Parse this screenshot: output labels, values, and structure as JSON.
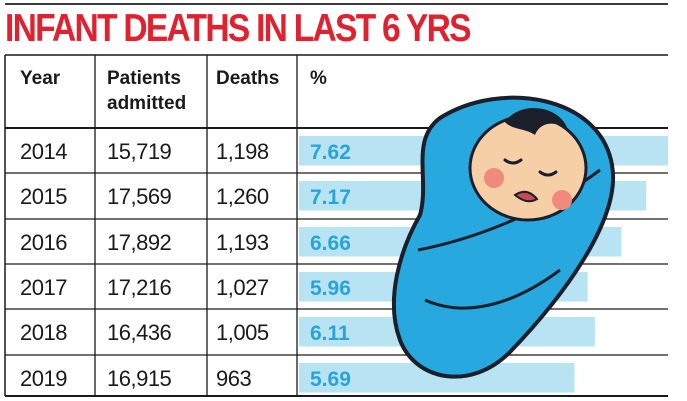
{
  "title": "INFANT DEATHS IN LAST 6 YRS",
  "colors": {
    "title": "#e02230",
    "bar": "#b7e3f3",
    "bar_text": "#2aa4d6",
    "blanket": "#27a9df",
    "blanket_dark": "#1a1f2b",
    "face": "#f7cfa7",
    "cheek": "#f08a7d",
    "rule": "#1a1a1a"
  },
  "table": {
    "headers": {
      "year": "Year",
      "patients_line1": "Patients",
      "patients_line2": "admitted",
      "deaths": "Deaths",
      "percent": "%"
    },
    "rows": [
      {
        "year": "2014",
        "patients": "15,719",
        "deaths": "1,198",
        "percent": "7.62"
      },
      {
        "year": "2015",
        "patients": "17,569",
        "deaths": "1,260",
        "percent": "7.17"
      },
      {
        "year": "2016",
        "patients": "17,892",
        "deaths": "1,193",
        "percent": "6.66"
      },
      {
        "year": "2017",
        "patients": "17,216",
        "deaths": "1,027",
        "percent": "5.96"
      },
      {
        "year": "2018",
        "patients": "16,436",
        "deaths": "1,005",
        "percent": "6.11"
      },
      {
        "year": "2019",
        "patients": "16,915",
        "deaths": "963",
        "percent": "5.69"
      }
    ]
  },
  "chart_data": {
    "type": "bar",
    "title": "INFANT DEATHS IN LAST 6 YRS",
    "categories": [
      "2014",
      "2015",
      "2016",
      "2017",
      "2018",
      "2019"
    ],
    "series": [
      {
        "name": "%",
        "values": [
          7.62,
          7.17,
          6.66,
          5.96,
          6.11,
          5.69
        ]
      }
    ],
    "table_columns": [
      "Year",
      "Patients admitted",
      "Deaths",
      "%"
    ],
    "patients_admitted": [
      15719,
      17569,
      17892,
      17216,
      16436,
      16915
    ],
    "deaths": [
      1198,
      1260,
      1193,
      1027,
      1005,
      963
    ],
    "orientation": "horizontal",
    "grid": false,
    "legend": "none"
  }
}
